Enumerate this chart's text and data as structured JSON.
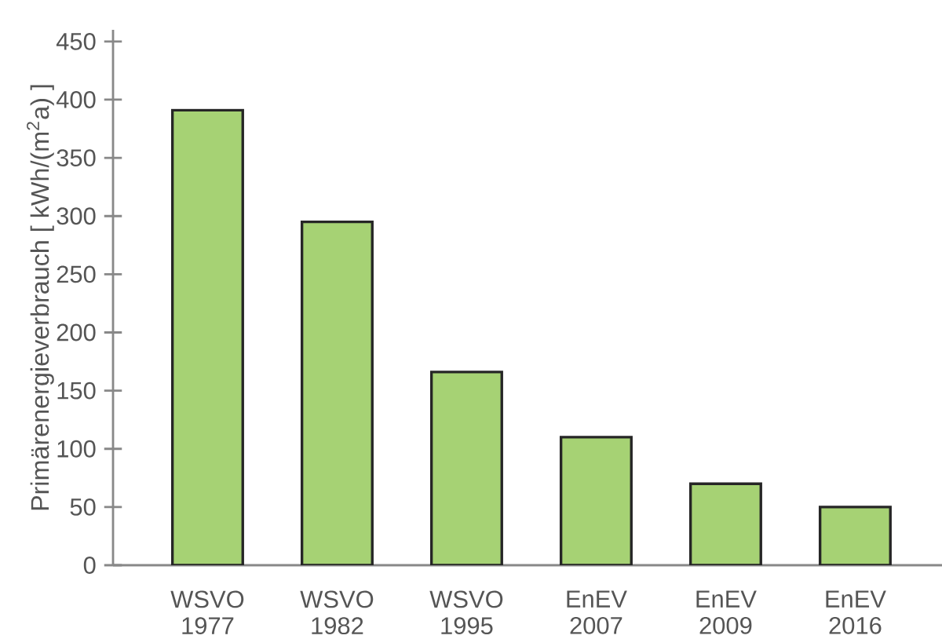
{
  "chart_data": {
    "type": "bar",
    "ylabel": "Primärenergieverbrauch   [ kWh/(m$^{2}$a) ]",
    "categories": [
      "WSVO 1977",
      "WSVO 1982",
      "WSVO 1995",
      "EnEV 2007",
      "EnEV 2009",
      "EnEV 2016"
    ],
    "values": [
      391,
      295,
      166,
      110,
      70,
      50
    ],
    "color": "#a6d274",
    "ylim": [
      0,
      460
    ],
    "yticks": [
      0,
      50,
      100,
      150,
      200,
      250,
      300,
      350,
      400,
      450
    ],
    "grid": false
  }
}
